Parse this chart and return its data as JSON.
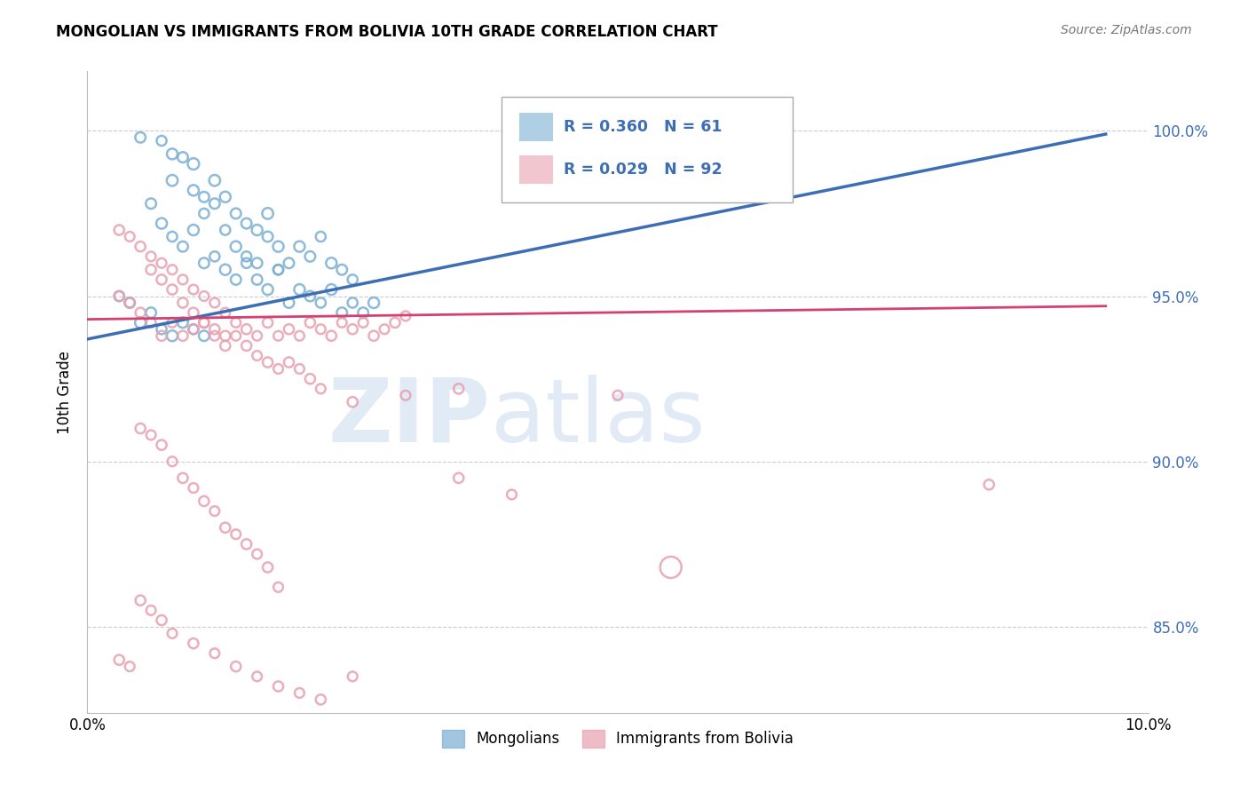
{
  "title": "MONGOLIAN VS IMMIGRANTS FROM BOLIVIA 10TH GRADE CORRELATION CHART",
  "source": "Source: ZipAtlas.com",
  "ylabel": "10th Grade",
  "watermark_zip": "ZIP",
  "watermark_atlas": "atlas",
  "legend_r1": "R = 0.360",
  "legend_n1": "N = 61",
  "legend_r2": "R = 0.029",
  "legend_n2": "N = 92",
  "legend_label1": "Mongolians",
  "legend_label2": "Immigrants from Bolivia",
  "blue_color": "#7bafd4",
  "pink_color": "#e8a0b0",
  "blue_line_color": "#3d6eb5",
  "pink_line_color": "#d44070",
  "ytick_labels": [
    "85.0%",
    "90.0%",
    "95.0%",
    "100.0%"
  ],
  "ytick_values": [
    0.85,
    0.9,
    0.95,
    1.0
  ],
  "xmin": 0.0,
  "xmax": 0.1,
  "ymin": 0.824,
  "ymax": 1.018,
  "blue_scatter_x": [
    0.005,
    0.007,
    0.008,
    0.008,
    0.009,
    0.01,
    0.01,
    0.011,
    0.011,
    0.012,
    0.012,
    0.013,
    0.013,
    0.014,
    0.014,
    0.015,
    0.015,
    0.016,
    0.016,
    0.017,
    0.017,
    0.018,
    0.018,
    0.019,
    0.02,
    0.021,
    0.022,
    0.023,
    0.024,
    0.025,
    0.006,
    0.007,
    0.008,
    0.009,
    0.01,
    0.011,
    0.012,
    0.013,
    0.014,
    0.015,
    0.016,
    0.017,
    0.018,
    0.019,
    0.02,
    0.021,
    0.022,
    0.023,
    0.024,
    0.025,
    0.026,
    0.027,
    0.003,
    0.004,
    0.005,
    0.006,
    0.007,
    0.008,
    0.009,
    0.01,
    0.011
  ],
  "blue_scatter_y": [
    0.998,
    0.997,
    0.993,
    0.985,
    0.992,
    0.99,
    0.982,
    0.98,
    0.975,
    0.985,
    0.978,
    0.98,
    0.97,
    0.975,
    0.965,
    0.972,
    0.962,
    0.97,
    0.96,
    0.975,
    0.968,
    0.965,
    0.958,
    0.96,
    0.965,
    0.962,
    0.968,
    0.96,
    0.958,
    0.955,
    0.978,
    0.972,
    0.968,
    0.965,
    0.97,
    0.96,
    0.962,
    0.958,
    0.955,
    0.96,
    0.955,
    0.952,
    0.958,
    0.948,
    0.952,
    0.95,
    0.948,
    0.952,
    0.945,
    0.948,
    0.945,
    0.948,
    0.95,
    0.948,
    0.942,
    0.945,
    0.94,
    0.938,
    0.942,
    0.94,
    0.938
  ],
  "blue_scatter_sizes": [
    70,
    65,
    75,
    80,
    70,
    85,
    75,
    70,
    65,
    80,
    70,
    75,
    65,
    70,
    75,
    70,
    65,
    75,
    70,
    80,
    70,
    75,
    65,
    70,
    75,
    70,
    65,
    75,
    70,
    65,
    70,
    75,
    65,
    70,
    75,
    70,
    65,
    75,
    70,
    65,
    70,
    75,
    65,
    70,
    75,
    70,
    65,
    75,
    70,
    65,
    70,
    75,
    65,
    70,
    75,
    70,
    65,
    75,
    70,
    65,
    70
  ],
  "pink_scatter_x": [
    0.003,
    0.004,
    0.005,
    0.006,
    0.006,
    0.007,
    0.007,
    0.008,
    0.008,
    0.009,
    0.009,
    0.01,
    0.01,
    0.011,
    0.011,
    0.012,
    0.012,
    0.013,
    0.013,
    0.014,
    0.015,
    0.016,
    0.017,
    0.018,
    0.019,
    0.02,
    0.021,
    0.022,
    0.023,
    0.024,
    0.025,
    0.026,
    0.027,
    0.028,
    0.029,
    0.03,
    0.003,
    0.004,
    0.005,
    0.006,
    0.007,
    0.008,
    0.009,
    0.01,
    0.011,
    0.012,
    0.013,
    0.014,
    0.015,
    0.016,
    0.017,
    0.018,
    0.019,
    0.02,
    0.021,
    0.022,
    0.025,
    0.03,
    0.035,
    0.05,
    0.005,
    0.006,
    0.007,
    0.008,
    0.009,
    0.01,
    0.011,
    0.012,
    0.013,
    0.014,
    0.015,
    0.016,
    0.017,
    0.018,
    0.035,
    0.04,
    0.005,
    0.006,
    0.007,
    0.008,
    0.01,
    0.012,
    0.014,
    0.016,
    0.018,
    0.02,
    0.022,
    0.025,
    0.003,
    0.004,
    0.055,
    0.085
  ],
  "pink_scatter_y": [
    0.97,
    0.968,
    0.965,
    0.962,
    0.958,
    0.96,
    0.955,
    0.958,
    0.952,
    0.955,
    0.948,
    0.952,
    0.945,
    0.95,
    0.942,
    0.948,
    0.94,
    0.945,
    0.938,
    0.942,
    0.94,
    0.938,
    0.942,
    0.938,
    0.94,
    0.938,
    0.942,
    0.94,
    0.938,
    0.942,
    0.94,
    0.942,
    0.938,
    0.94,
    0.942,
    0.944,
    0.95,
    0.948,
    0.945,
    0.942,
    0.938,
    0.942,
    0.938,
    0.94,
    0.942,
    0.938,
    0.935,
    0.938,
    0.935,
    0.932,
    0.93,
    0.928,
    0.93,
    0.928,
    0.925,
    0.922,
    0.918,
    0.92,
    0.922,
    0.92,
    0.91,
    0.908,
    0.905,
    0.9,
    0.895,
    0.892,
    0.888,
    0.885,
    0.88,
    0.878,
    0.875,
    0.872,
    0.868,
    0.862,
    0.895,
    0.89,
    0.858,
    0.855,
    0.852,
    0.848,
    0.845,
    0.842,
    0.838,
    0.835,
    0.832,
    0.83,
    0.828,
    0.835,
    0.84,
    0.838,
    0.868,
    0.893
  ],
  "pink_scatter_sizes": [
    65,
    60,
    65,
    60,
    65,
    60,
    65,
    60,
    65,
    60,
    65,
    60,
    65,
    60,
    65,
    60,
    65,
    60,
    65,
    60,
    65,
    60,
    65,
    60,
    65,
    60,
    65,
    60,
    65,
    60,
    65,
    60,
    65,
    60,
    65,
    60,
    65,
    60,
    65,
    60,
    65,
    60,
    65,
    60,
    65,
    60,
    65,
    60,
    65,
    60,
    65,
    60,
    65,
    60,
    65,
    60,
    65,
    60,
    65,
    60,
    65,
    60,
    65,
    60,
    65,
    60,
    65,
    60,
    65,
    60,
    65,
    60,
    65,
    60,
    65,
    60,
    65,
    60,
    65,
    60,
    65,
    60,
    65,
    60,
    65,
    60,
    65,
    60,
    65,
    60,
    300,
    65
  ],
  "blue_trend_x": [
    0.0,
    0.096
  ],
  "blue_trend_y": [
    0.937,
    0.999
  ],
  "pink_trend_x": [
    0.0,
    0.096
  ],
  "pink_trend_y": [
    0.943,
    0.947
  ]
}
